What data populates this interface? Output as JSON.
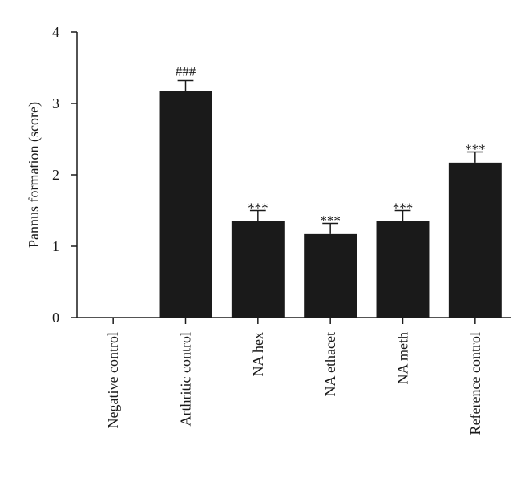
{
  "chart_data": {
    "type": "bar",
    "title": "",
    "xlabel": "",
    "ylabel": "Pannus formation (score)",
    "ylim": [
      0,
      4
    ],
    "yticks": [
      "0",
      "1",
      "2",
      "3",
      "4"
    ],
    "grid": false,
    "legend": "none",
    "bar_color": "#1a1a1a",
    "categories": [
      "Negative control",
      "Arthritic control",
      "NA hex",
      "NA ethacet",
      "NA meth",
      "Reference control"
    ],
    "values": [
      0,
      3.17,
      1.35,
      1.17,
      1.35,
      2.17
    ],
    "errors": [
      0,
      0.15,
      0.15,
      0.15,
      0.15,
      0.15
    ],
    "annotations": [
      "",
      "###",
      "***",
      "***",
      "***",
      "***"
    ]
  }
}
